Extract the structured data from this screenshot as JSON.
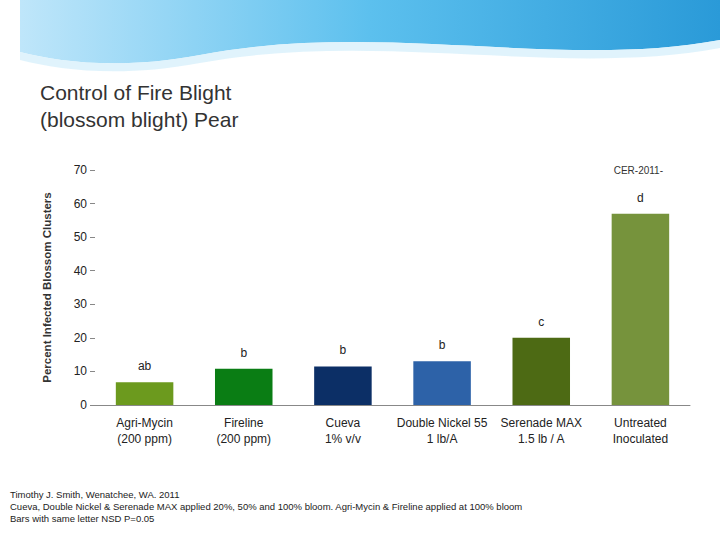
{
  "chart_data": {
    "type": "bar",
    "title": "Control of Fire Blight\n(blossom blight) Pear",
    "corner_note": "CER-2011-",
    "ylabel": "Percent Infected Blossom Clusters",
    "categories": [
      "Agri-Mycin\n(200 ppm)",
      "Fireline\n(200 ppm)",
      "Cueva\n1% v/v",
      "Double Nickel 55\n1 lb/A",
      "Serenade MAX\n1.5 lb / A",
      "Untreated\nInoculated"
    ],
    "values": [
      6.8,
      10.8,
      11.5,
      13,
      20,
      57
    ],
    "colors": [
      "#6c9a1e",
      "#0a7d14",
      "#0c2f66",
      "#2d62a8",
      "#4d6a14",
      "#76933c"
    ],
    "annotations": [
      "ab",
      "b",
      "b",
      "b",
      "c",
      "d"
    ],
    "ylim": [
      0,
      70
    ],
    "yticks": [
      0,
      10,
      20,
      30,
      40,
      50,
      60,
      70
    ],
    "grid": false,
    "footnotes": [
      "Timothy J. Smith, Wenatchee, WA. 2011",
      "Cueva, Double Nickel & Serenade MAX applied 20%, 50% and 100% bloom.  Agri-Mycin & Fireline applied at 100% bloom",
      "Bars with same letter NSD P=0.05"
    ]
  }
}
